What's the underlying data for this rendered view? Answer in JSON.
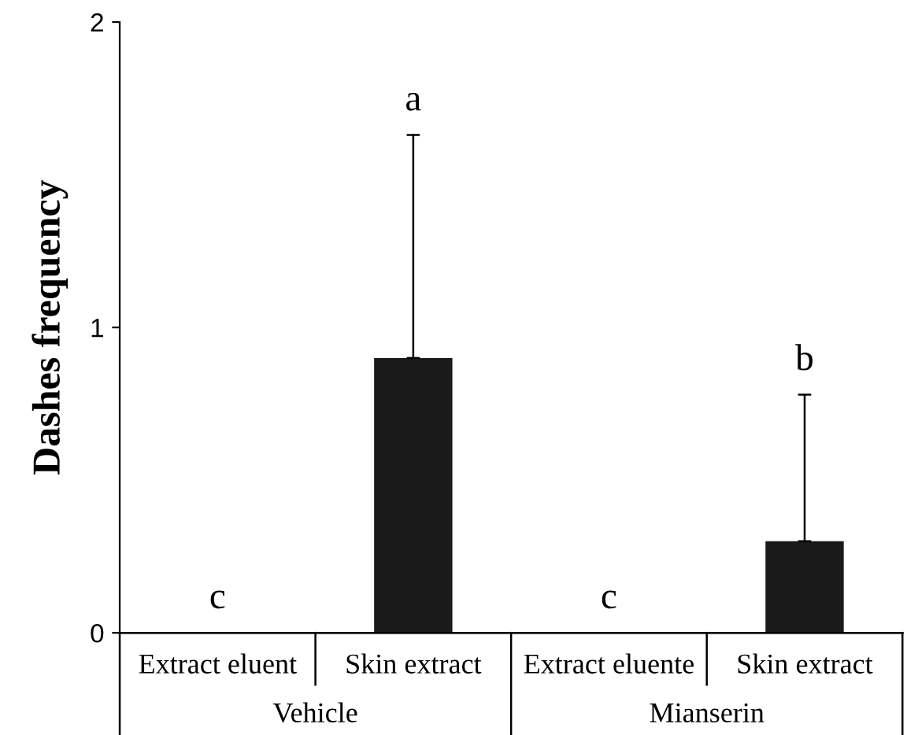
{
  "chart_data": {
    "type": "bar",
    "ylabel": "Dashes frequency",
    "categories": [
      "Extract eluent",
      "Skin extract",
      "Extract eluente",
      "Skin extract"
    ],
    "values": [
      0,
      0.9,
      0,
      0.3
    ],
    "color": "#1a1a1a",
    "errors": [
      null,
      [
        0.9,
        1.63
      ],
      null,
      [
        0.3,
        0.78
      ]
    ],
    "annotations": [
      "c",
      "a",
      "c",
      "b",
      "Vehicle",
      "Mianserin"
    ],
    "ylim": [
      0,
      2
    ],
    "yticks": [
      0,
      1,
      2
    ],
    "grid": false
  }
}
